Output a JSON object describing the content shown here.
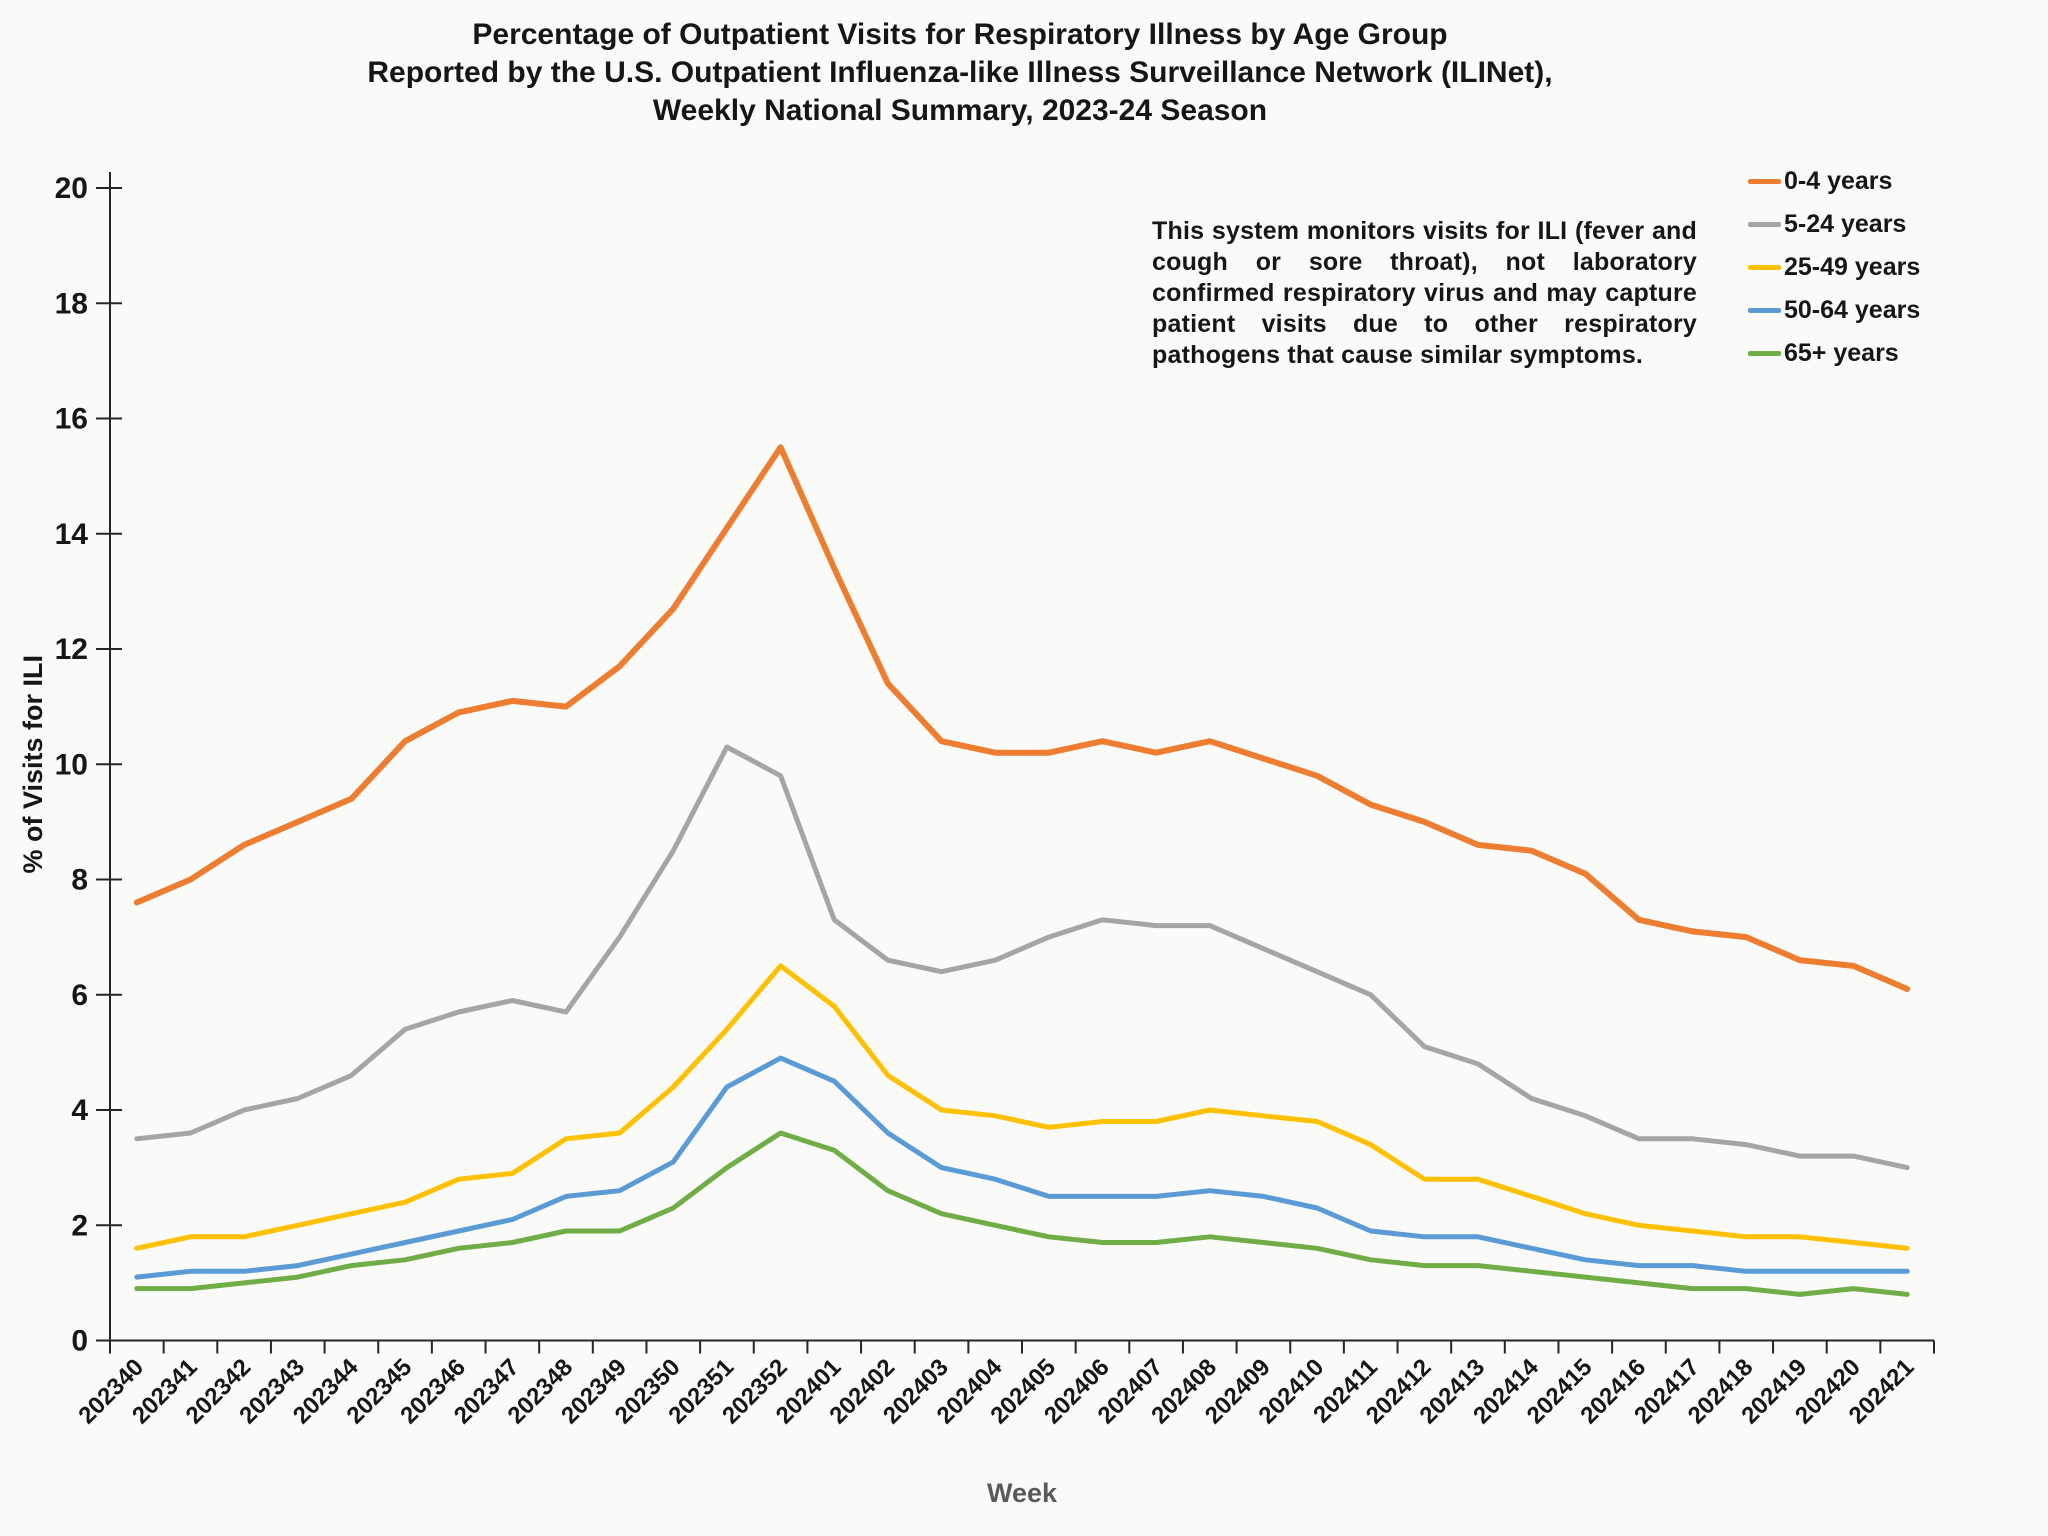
{
  "chart_data": {
    "type": "line",
    "title_lines": [
      "Percentage of Outpatient Visits for Respiratory Illness by Age Group",
      "Reported by the U.S. Outpatient Influenza-like Illness Surveillance Network (ILINet),",
      "Weekly National Summary, 2023-24 Season"
    ],
    "annotation": "This system monitors visits for ILI (fever and cough or sore throat), not laboratory confirmed respiratory virus and may capture patient visits due to other respiratory pathogens that cause similar symptoms.",
    "xlabel": "Week",
    "ylabel": "% of Visits for ILI",
    "ylim": [
      0,
      20
    ],
    "ytick_step": 2,
    "grid": false,
    "legend_position": "right",
    "x_categories": [
      "202340",
      "202341",
      "202342",
      "202343",
      "202344",
      "202345",
      "202346",
      "202347",
      "202348",
      "202349",
      "202350",
      "202351",
      "202352",
      "202401",
      "202402",
      "202403",
      "202404",
      "202405",
      "202406",
      "202407",
      "202408",
      "202409",
      "202410",
      "202411",
      "202412",
      "202413",
      "202414",
      "202415",
      "202416",
      "202417",
      "202418",
      "202419",
      "202420",
      "202421"
    ],
    "series": [
      {
        "name": "0-4 years",
        "color": "#ED7D31",
        "values": [
          7.6,
          8.0,
          8.6,
          9.0,
          9.4,
          10.4,
          10.9,
          11.1,
          11.0,
          11.7,
          12.7,
          14.1,
          15.5,
          13.4,
          11.4,
          10.4,
          10.2,
          10.2,
          10.4,
          10.2,
          10.4,
          10.1,
          9.8,
          9.3,
          9.0,
          8.6,
          8.5,
          8.1,
          7.3,
          7.1,
          7.0,
          6.6,
          6.5,
          6.1
        ]
      },
      {
        "name": "5-24 years",
        "color": "#A5A5A5",
        "values": [
          3.5,
          3.6,
          4.0,
          4.2,
          4.6,
          5.4,
          5.7,
          5.9,
          5.7,
          7.0,
          8.5,
          10.3,
          9.8,
          7.3,
          6.6,
          6.4,
          6.6,
          7.0,
          7.3,
          7.2,
          7.2,
          6.8,
          6.4,
          6.0,
          5.1,
          4.8,
          4.2,
          3.9,
          3.5,
          3.5,
          3.4,
          3.2,
          3.2,
          3.0
        ]
      },
      {
        "name": "25-49 years",
        "color": "#FFC000",
        "values": [
          1.6,
          1.8,
          1.8,
          2.0,
          2.2,
          2.4,
          2.8,
          2.9,
          3.5,
          3.6,
          4.4,
          5.4,
          6.5,
          5.8,
          4.6,
          4.0,
          3.9,
          3.7,
          3.8,
          3.8,
          4.0,
          3.9,
          3.8,
          3.4,
          2.8,
          2.8,
          2.5,
          2.2,
          2.0,
          1.9,
          1.8,
          1.8,
          1.7,
          1.6
        ]
      },
      {
        "name": "50-64 years",
        "color": "#5B9BD5",
        "values": [
          1.1,
          1.2,
          1.2,
          1.3,
          1.5,
          1.7,
          1.9,
          2.1,
          2.5,
          2.6,
          3.1,
          4.4,
          4.9,
          4.5,
          3.6,
          3.0,
          2.8,
          2.5,
          2.5,
          2.5,
          2.6,
          2.5,
          2.3,
          1.9,
          1.8,
          1.8,
          1.6,
          1.4,
          1.3,
          1.3,
          1.2,
          1.2,
          1.2,
          1.2
        ]
      },
      {
        "name": "65+ years",
        "color": "#70AD47",
        "values": [
          0.9,
          0.9,
          1.0,
          1.1,
          1.3,
          1.4,
          1.6,
          1.7,
          1.9,
          1.9,
          2.3,
          3.0,
          3.6,
          3.3,
          2.6,
          2.2,
          2.0,
          1.8,
          1.7,
          1.7,
          1.8,
          1.7,
          1.6,
          1.4,
          1.3,
          1.3,
          1.2,
          1.1,
          1.0,
          0.9,
          0.9,
          0.8,
          0.9,
          0.8
        ]
      }
    ]
  }
}
